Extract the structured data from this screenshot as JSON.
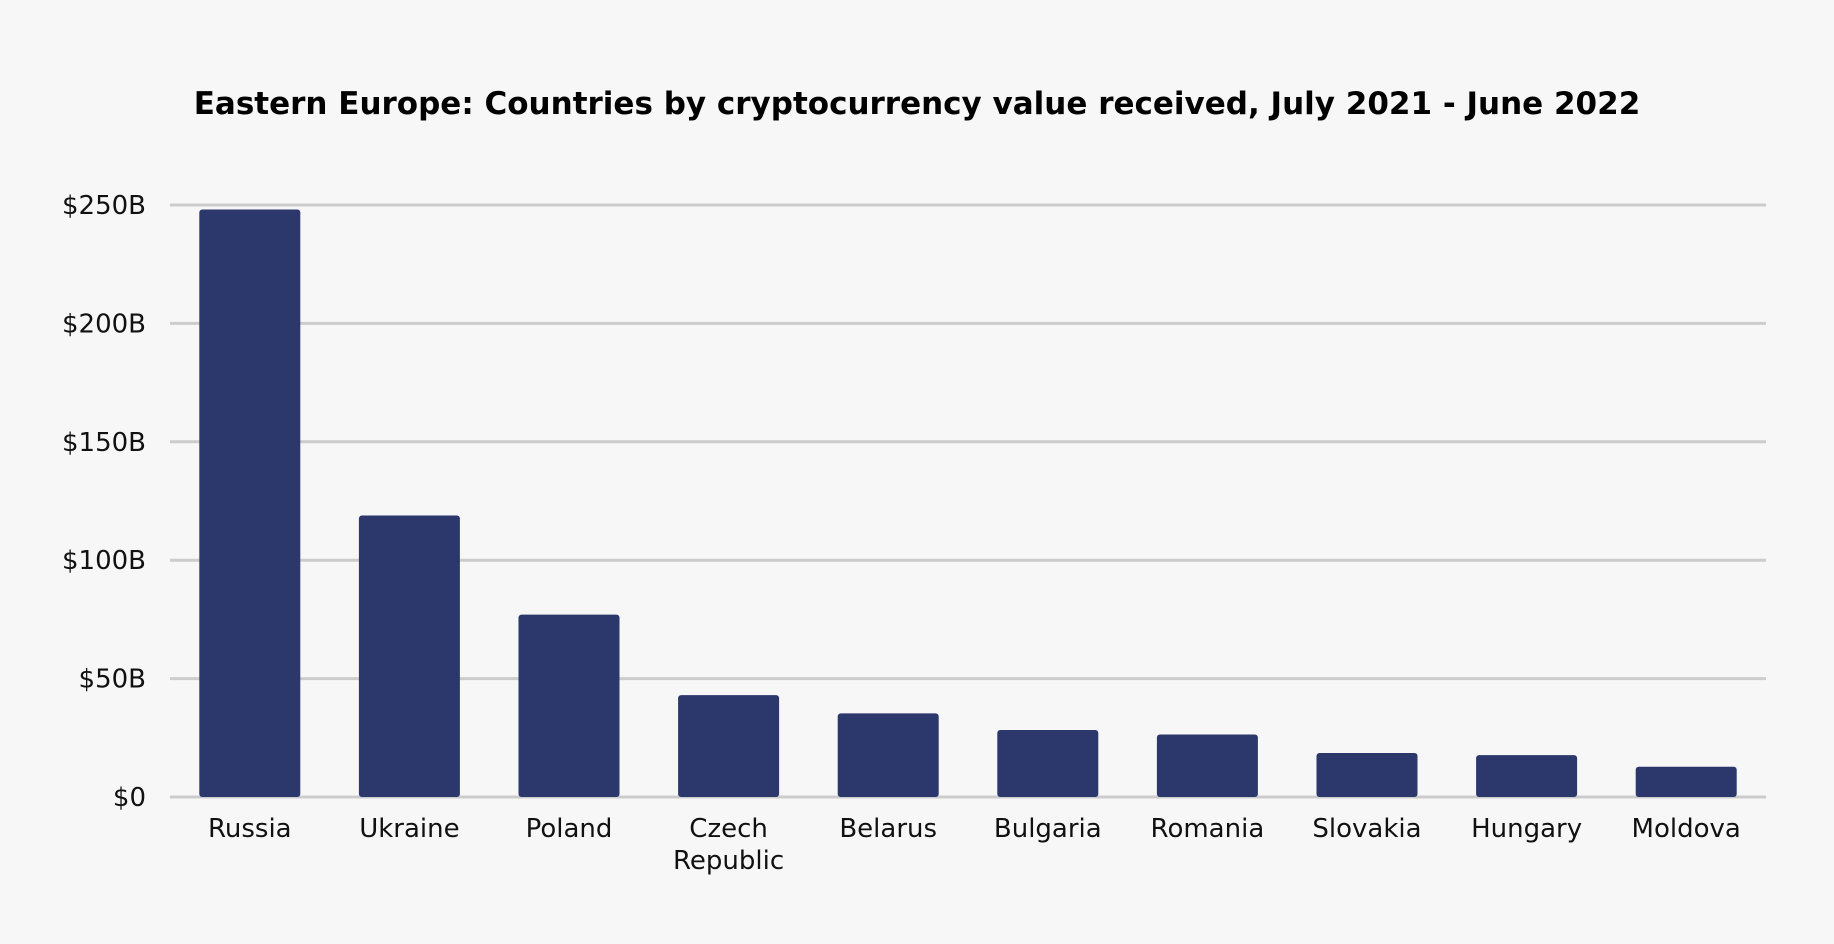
{
  "colors": {
    "background": "#f7f7f7",
    "bar": "#2c376b",
    "grid": "#cccccc",
    "text": "#111111"
  },
  "chart_data": {
    "type": "bar",
    "title": "Eastern Europe: Countries by cryptocurrency value received, July 2021 - June 2022",
    "xlabel": "",
    "ylabel": "",
    "ylim": [
      0,
      250
    ],
    "yticks": [
      0,
      50,
      100,
      150,
      200,
      250
    ],
    "ytick_labels": [
      "$0",
      "$50B",
      "$100B",
      "$150B",
      "$200B",
      "$250B"
    ],
    "grid": true,
    "categories": [
      [
        "Russia"
      ],
      [
        "Ukraine"
      ],
      [
        "Poland"
      ],
      [
        "Czech",
        "Republic"
      ],
      [
        "Belarus"
      ],
      [
        "Bulgaria"
      ],
      [
        "Romania"
      ],
      [
        "Slovakia"
      ],
      [
        "Hungary"
      ],
      [
        "Moldova"
      ]
    ],
    "series": [
      {
        "name": "Value received",
        "values": [
          248.1,
          118.9,
          77.0,
          43.0,
          35.3,
          28.3,
          26.4,
          18.6,
          17.7,
          12.8
        ]
      }
    ]
  }
}
